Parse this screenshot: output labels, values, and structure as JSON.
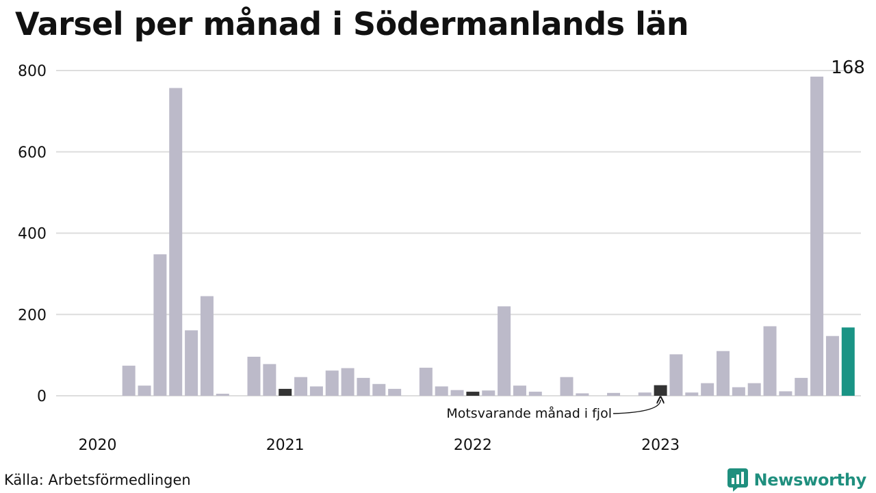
{
  "title": "Varsel per månad i Södermanlands län",
  "source": "Källa: Arbetsförmedlingen",
  "brand": "Newsworthy",
  "colors": {
    "bar": "#bcbac9",
    "highlight_previous_year": "#333333",
    "latest": "#1a9485",
    "grid": "#dddddd",
    "brand": "#1f8f7e"
  },
  "icons": [
    "newsworthy-logo-icon",
    "arrow-icon"
  ],
  "chart_data": {
    "type": "bar",
    "title": "Varsel per månad i Södermanlands län",
    "xlabel": "",
    "ylabel": "",
    "ylim": [
      0,
      800
    ],
    "yticks": [
      0,
      200,
      400,
      600,
      800
    ],
    "grid": true,
    "x_axis_labels": [
      "2020",
      "2021",
      "2022",
      "2023"
    ],
    "x": [
      "2020-01",
      "2020-02",
      "2020-03",
      "2020-04",
      "2020-05",
      "2020-06",
      "2020-07",
      "2020-08",
      "2020-09",
      "2020-10",
      "2020-11",
      "2020-12",
      "2021-01",
      "2021-02",
      "2021-03",
      "2021-04",
      "2021-05",
      "2021-06",
      "2021-07",
      "2021-08",
      "2021-09",
      "2021-10",
      "2021-11",
      "2021-12",
      "2022-01",
      "2022-02",
      "2022-03",
      "2022-04",
      "2022-05",
      "2022-06",
      "2022-07",
      "2022-08",
      "2022-09",
      "2022-10",
      "2022-11",
      "2022-12",
      "2023-01",
      "2023-02",
      "2023-03",
      "2023-04",
      "2023-05",
      "2023-06",
      "2023-07",
      "2023-08",
      "2023-09",
      "2023-10",
      "2023-11",
      "2023-12"
    ],
    "values": [
      0,
      0,
      74,
      25,
      348,
      757,
      161,
      245,
      5,
      0,
      96,
      78,
      17,
      46,
      23,
      62,
      68,
      44,
      29,
      17,
      0,
      69,
      23,
      14,
      10,
      13,
      220,
      25,
      10,
      0,
      46,
      6,
      0,
      7,
      0,
      8,
      26,
      102,
      8,
      31,
      110,
      21,
      31,
      171,
      11,
      44,
      785,
      147
    ],
    "latest": {
      "x": "2024-01",
      "value": 168,
      "label": "168"
    },
    "highlight_indices": [
      12,
      24,
      36
    ],
    "annotation": {
      "text": "Motsvarande månad i fjol",
      "target_index": 36
    }
  }
}
